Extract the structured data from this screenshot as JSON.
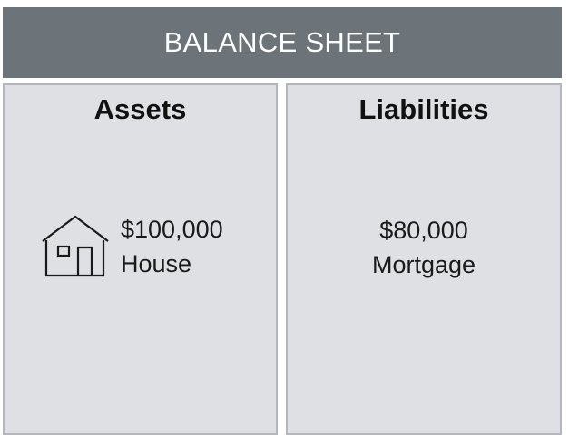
{
  "header": {
    "title": "BALANCE SHEET"
  },
  "colors": {
    "header_bg": "#6c7479",
    "panel_bg": "#dfe0e4",
    "panel_border": "#b3b7bc"
  },
  "columns": [
    {
      "title": "Assets",
      "items": [
        {
          "value": "$100,000",
          "label": "House",
          "icon": "house-icon"
        }
      ]
    },
    {
      "title": "Liabilities",
      "items": [
        {
          "value": "$80,000",
          "label": "Mortgage"
        }
      ]
    }
  ]
}
